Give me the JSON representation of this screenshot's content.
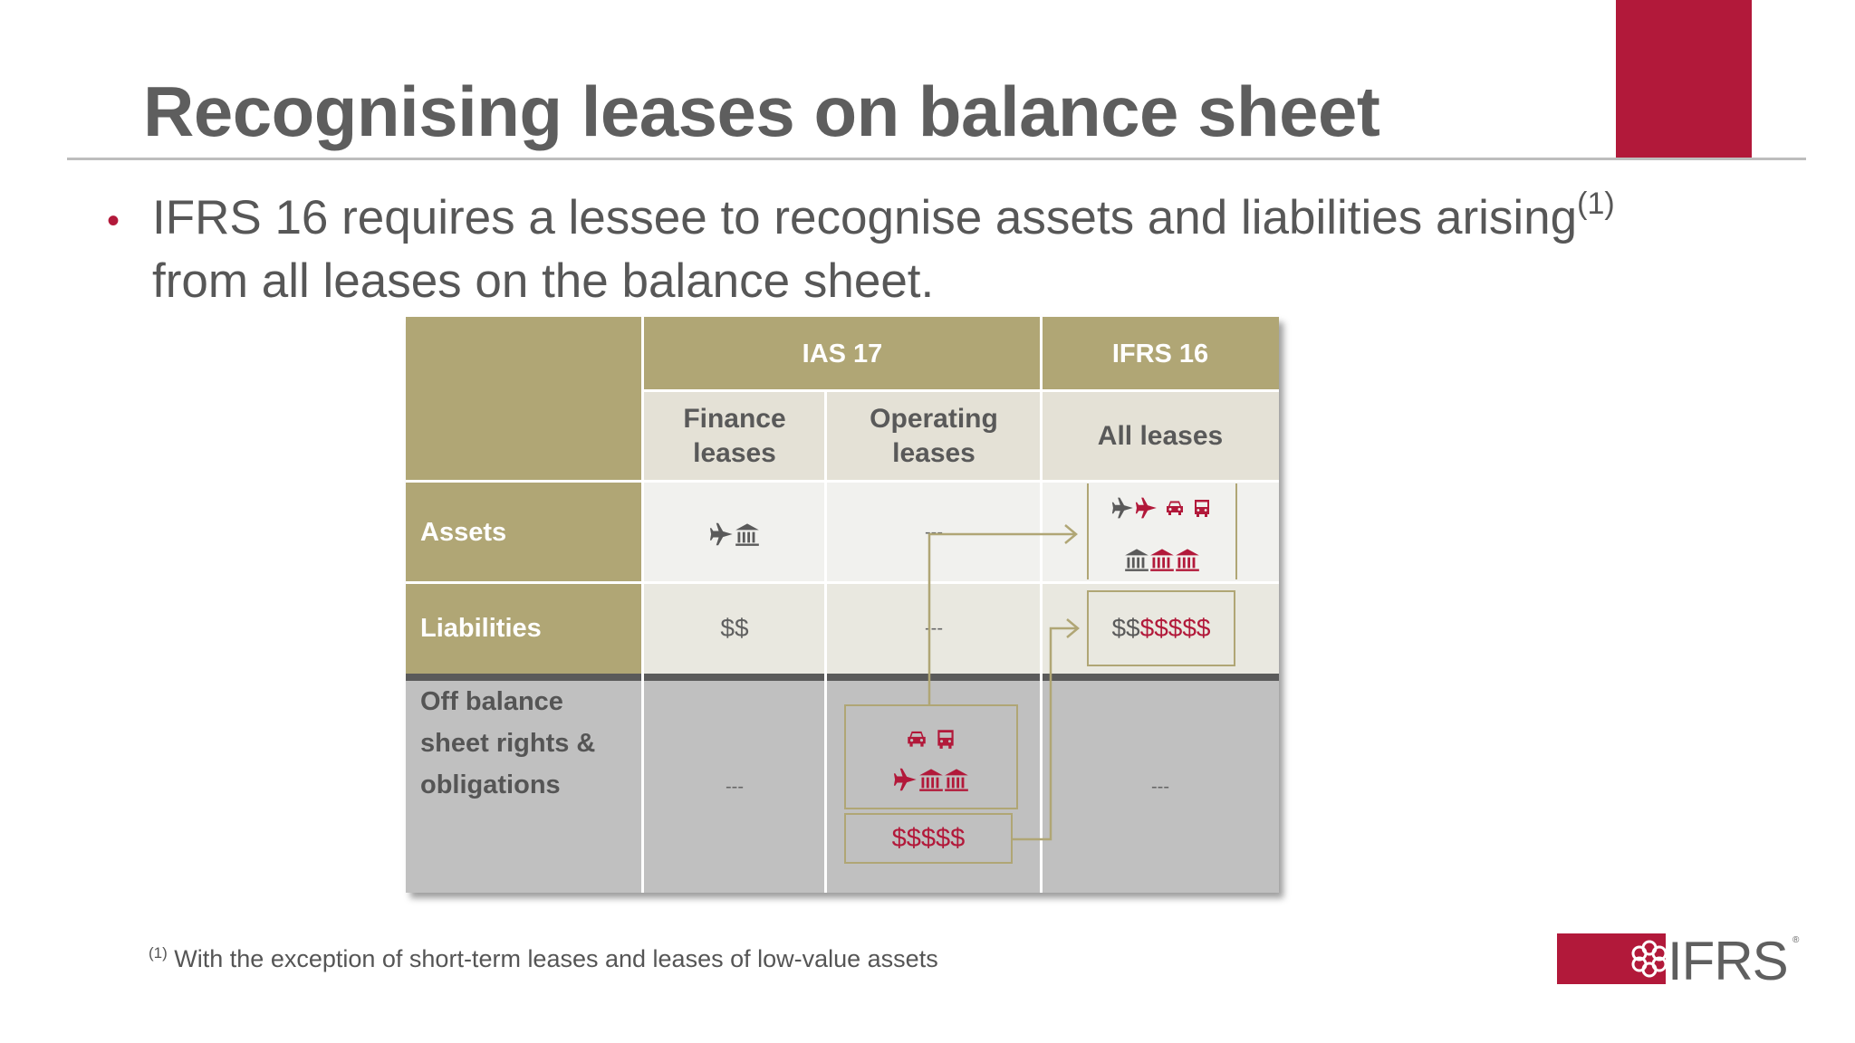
{
  "slide": {
    "title": "Recognising leases on balance sheet",
    "bullet": {
      "text_before": "IFRS 16 requires a lessee to recognise assets and liabilities arising",
      "superscript": "(1)",
      "text_after": " from all leases on the balance sheet."
    }
  },
  "table": {
    "headers": {
      "ias17": "IAS 17",
      "ifrs16": "IFRS 16"
    },
    "subheaders": {
      "finance_l1": "Finance",
      "finance_l2": "leases",
      "operating_l1": "Operating",
      "operating_l2": "leases",
      "all": "All leases"
    },
    "rows": {
      "assets": "Assets",
      "liabilities": "Liabilities",
      "off_l1": "Off balance",
      "off_l2": "sheet rights &",
      "off_l3": "obligations"
    },
    "cells": {
      "assets_finance_icons": [
        "airplane-icon",
        "building-icon"
      ],
      "assets_operating": "---",
      "assets_all_icons_row1": [
        "airplane-icon",
        "airplane-icon",
        "car-icon",
        "bus-icon"
      ],
      "assets_all_icons_row2": [
        "building-icon",
        "building-icon",
        "building-icon"
      ],
      "liabilities_finance": "$$",
      "liabilities_operating": "---",
      "liabilities_all_grey": "$$",
      "liabilities_all_red": "$$$$$",
      "off_finance": "---",
      "off_operating_icons_row1": [
        "car-icon",
        "bus-icon"
      ],
      "off_operating_icons_row2": [
        "airplane-icon",
        "building-icon",
        "building-icon"
      ],
      "off_operating_money": "$$$$$",
      "off_all": "---"
    }
  },
  "footnote": {
    "marker": "(1)",
    "text": " With the exception of short-term leases and leases of low-value assets"
  },
  "logo": {
    "text": "IFRS",
    "tm": "®"
  },
  "colors": {
    "accent_red": "#b2193a",
    "header_olive": "#b0a675",
    "subheader_beige": "#e4e1d6",
    "body_light": "#f1f1ee",
    "body_beige": "#e9e8e0",
    "off_grey": "#c0c0c0",
    "divider_dark": "#5a5a5a",
    "title_grey": "#5e5e5e"
  }
}
